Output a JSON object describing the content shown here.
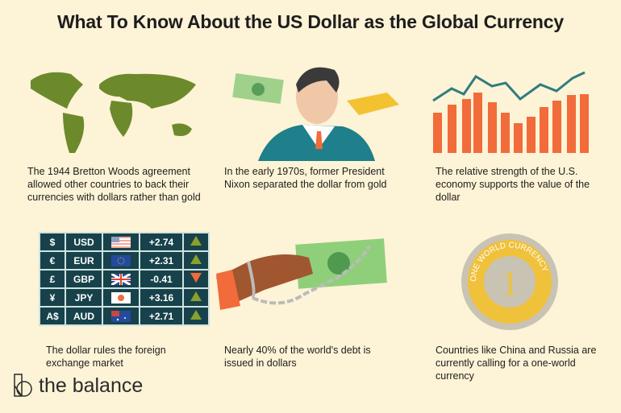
{
  "title": "What To Know About the US Dollar as the Global Currency",
  "panels": [
    {
      "icon": "world-map-icon",
      "caption": "The 1944 Bretton Woods agreement allowed other countries to back their currencies with dollars rather than gold"
    },
    {
      "icon": "nixon-dollar-gold-icon",
      "caption": "In the early 1970s, former President Nixon separated the dollar from gold"
    },
    {
      "icon": "bar-chart-trend-icon",
      "caption": "The relative strength of the U.S. economy supports the value of the dollar"
    },
    {
      "icon": "currency-table-icon",
      "caption": "The dollar rules the foreign exchange market"
    },
    {
      "icon": "chained-dollar-icon",
      "caption": "Nearly 40% of the world's debt is issued in dollars"
    },
    {
      "icon": "world-coin-icon",
      "caption": "Countries like China and Russia are currently calling for a one-world currency",
      "coin_text": "ONE WORLD CURRENCY",
      "coin_number": "1"
    }
  ],
  "fx_table": [
    {
      "symbol": "$",
      "code": "USD",
      "flag": "us",
      "change": "+2.74",
      "direction": "up"
    },
    {
      "symbol": "€",
      "code": "EUR",
      "flag": "eu",
      "change": "+2.31",
      "direction": "up"
    },
    {
      "symbol": "£",
      "code": "GBP",
      "flag": "uk",
      "change": "-0.41",
      "direction": "down"
    },
    {
      "symbol": "¥",
      "code": "JPY",
      "flag": "jp",
      "change": "+3.16",
      "direction": "up"
    },
    {
      "symbol": "A$",
      "code": "AUD",
      "flag": "au",
      "change": "+2.71",
      "direction": "up"
    }
  ],
  "colors": {
    "background": "#fdf3d6",
    "up": "#8aa02c",
    "down": "#f26b3a",
    "table": "#17424b",
    "bars": "#f26b3a",
    "line": "#2f7d7e"
  },
  "logo": {
    "text": "the balance"
  }
}
